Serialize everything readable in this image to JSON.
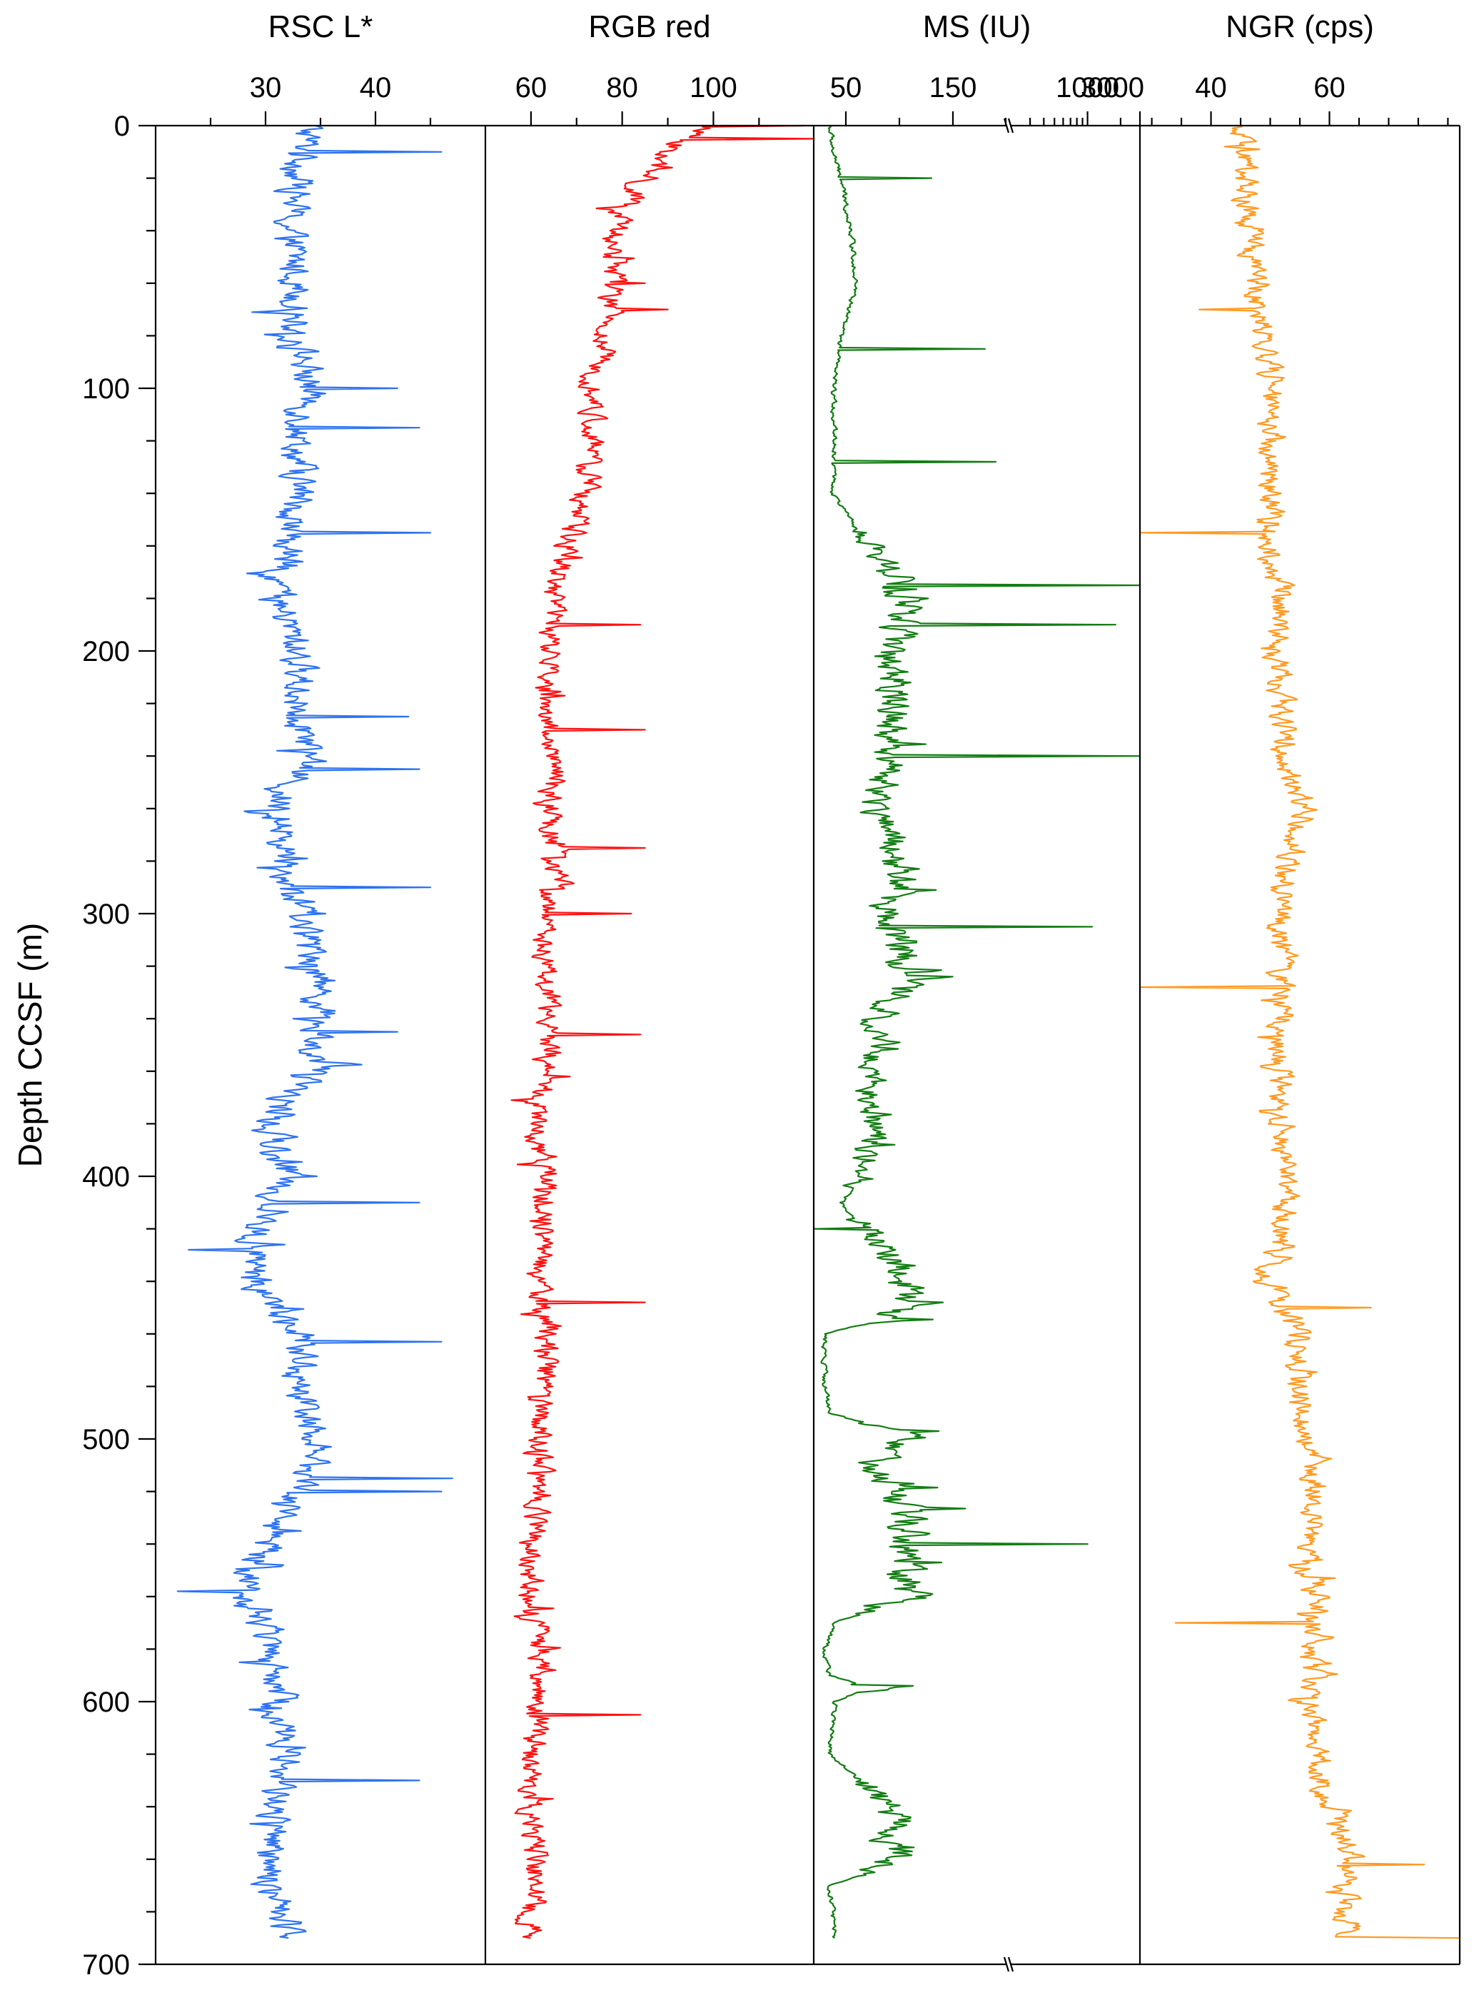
{
  "chart_data": {
    "type": "line",
    "orientation": "vertical-depth",
    "y_axis": {
      "label": "Depth CCSF (m)",
      "range": [
        0,
        700
      ],
      "inverted": true,
      "ticks": [
        0,
        100,
        200,
        300,
        400,
        500,
        600,
        700
      ],
      "minor_step": 20
    },
    "panels": [
      {
        "id": "rsc",
        "title": "RSC L*",
        "color": "#2e73f0",
        "xlim": [
          20,
          50
        ],
        "ticks": [
          30,
          40
        ],
        "minor_ticks": [
          25,
          35,
          45
        ],
        "baseline": [
          [
            0,
            34
          ],
          [
            20,
            33
          ],
          [
            40,
            32
          ],
          [
            60,
            33
          ],
          [
            80,
            33
          ],
          [
            100,
            34
          ],
          [
            120,
            33
          ],
          [
            140,
            33
          ],
          [
            160,
            32
          ],
          [
            180,
            31
          ],
          [
            200,
            33
          ],
          [
            220,
            33
          ],
          [
            240,
            34
          ],
          [
            260,
            31
          ],
          [
            280,
            32
          ],
          [
            300,
            33
          ],
          [
            320,
            35
          ],
          [
            340,
            35
          ],
          [
            360,
            34
          ],
          [
            380,
            30
          ],
          [
            400,
            32
          ],
          [
            420,
            29
          ],
          [
            440,
            29
          ],
          [
            460,
            33
          ],
          [
            480,
            33
          ],
          [
            500,
            35
          ],
          [
            520,
            33
          ],
          [
            540,
            30
          ],
          [
            560,
            28
          ],
          [
            580,
            31
          ],
          [
            600,
            31
          ],
          [
            620,
            32
          ],
          [
            640,
            31
          ],
          [
            660,
            30
          ],
          [
            680,
            31
          ],
          [
            690,
            33
          ]
        ],
        "amplitude": 2.6,
        "spikes": [
          [
            10,
            46
          ],
          [
            100,
            42
          ],
          [
            115,
            44
          ],
          [
            155,
            45
          ],
          [
            225,
            43
          ],
          [
            245,
            44
          ],
          [
            290,
            45
          ],
          [
            345,
            42
          ],
          [
            410,
            44
          ],
          [
            428,
            23
          ],
          [
            463,
            46
          ],
          [
            515,
            47
          ],
          [
            520,
            46
          ],
          [
            558,
            22
          ],
          [
            630,
            44
          ]
        ]
      },
      {
        "id": "rgb",
        "title": "RGB red",
        "color": "#ff1111",
        "xlim": [
          50,
          122
        ],
        "ticks": [
          60,
          80,
          100
        ],
        "minor_ticks": [
          70,
          90,
          110
        ],
        "baseline": [
          [
            0,
            98
          ],
          [
            10,
            90
          ],
          [
            20,
            84
          ],
          [
            40,
            78
          ],
          [
            60,
            78
          ],
          [
            80,
            76
          ],
          [
            100,
            74
          ],
          [
            120,
            73
          ],
          [
            140,
            72
          ],
          [
            160,
            68
          ],
          [
            180,
            65
          ],
          [
            200,
            64
          ],
          [
            220,
            63
          ],
          [
            240,
            65
          ],
          [
            260,
            64
          ],
          [
            280,
            66
          ],
          [
            300,
            63
          ],
          [
            320,
            63
          ],
          [
            340,
            64
          ],
          [
            360,
            63
          ],
          [
            380,
            61
          ],
          [
            400,
            64
          ],
          [
            420,
            63
          ],
          [
            440,
            61
          ],
          [
            460,
            64
          ],
          [
            480,
            62
          ],
          [
            500,
            62
          ],
          [
            520,
            62
          ],
          [
            540,
            60
          ],
          [
            560,
            60
          ],
          [
            580,
            62
          ],
          [
            600,
            62
          ],
          [
            620,
            60
          ],
          [
            640,
            60
          ],
          [
            660,
            61
          ],
          [
            680,
            60
          ],
          [
            690,
            60
          ]
        ],
        "amplitude": 4.5,
        "spikes": [
          [
            0,
            120
          ],
          [
            5,
            122
          ],
          [
            60,
            85
          ],
          [
            70,
            90
          ],
          [
            190,
            84
          ],
          [
            230,
            85
          ],
          [
            275,
            85
          ],
          [
            300,
            82
          ],
          [
            346,
            84
          ],
          [
            448,
            85
          ],
          [
            605,
            84
          ]
        ]
      },
      {
        "id": "ms",
        "title": "MS (IU)",
        "color": "#137d13",
        "tick_labels_left": [
          "50",
          "150"
        ],
        "tick_labels_right": [
          "1000",
          "3000"
        ],
        "xlim_linear": [
          20,
          200
        ],
        "xlim_log": [
          200,
          3000
        ],
        "ticks_linear": [
          50,
          150
        ],
        "minor_ticks_linear": [
          100,
          200
        ],
        "ticks_log": [
          1000,
          3000
        ],
        "baseline": [
          [
            0,
            35
          ],
          [
            10,
            38
          ],
          [
            20,
            45
          ],
          [
            40,
            55
          ],
          [
            60,
            60
          ],
          [
            80,
            45
          ],
          [
            100,
            38
          ],
          [
            120,
            40
          ],
          [
            140,
            38
          ],
          [
            160,
            70
          ],
          [
            180,
            110
          ],
          [
            200,
            90
          ],
          [
            220,
            100
          ],
          [
            240,
            90
          ],
          [
            260,
            80
          ],
          [
            280,
            100
          ],
          [
            300,
            90
          ],
          [
            320,
            110
          ],
          [
            340,
            80
          ],
          [
            360,
            75
          ],
          [
            380,
            75
          ],
          [
            400,
            70
          ],
          [
            410,
            45
          ],
          [
            420,
            70
          ],
          [
            440,
            110
          ],
          [
            455,
            80
          ],
          [
            460,
            30
          ],
          [
            480,
            30
          ],
          [
            490,
            35
          ],
          [
            500,
            110
          ],
          [
            510,
            70
          ],
          [
            530,
            110
          ],
          [
            545,
            100
          ],
          [
            560,
            110
          ],
          [
            570,
            40
          ],
          [
            580,
            30
          ],
          [
            590,
            35
          ],
          [
            595,
            75
          ],
          [
            600,
            40
          ],
          [
            620,
            35
          ],
          [
            640,
            90
          ],
          [
            660,
            100
          ],
          [
            670,
            35
          ],
          [
            690,
            40
          ]
        ],
        "amplitude": 25,
        "spikes": [
          [
            20,
            130
          ],
          [
            85,
            180
          ],
          [
            128,
            190
          ],
          [
            175,
            3000
          ],
          [
            190,
            1800
          ],
          [
            240,
            3000
          ],
          [
            305,
            1100
          ],
          [
            420,
            15
          ],
          [
            540,
            1000
          ]
        ]
      },
      {
        "id": "ngr",
        "title": "NGR (cps)",
        "color": "#ff9a22",
        "xlim": [
          28,
          82
        ],
        "ticks": [
          40,
          60
        ],
        "minor_ticks": [
          30,
          35,
          45,
          50,
          55,
          65,
          70,
          75,
          80
        ],
        "baseline": [
          [
            0,
            44
          ],
          [
            20,
            46
          ],
          [
            40,
            46
          ],
          [
            60,
            48
          ],
          [
            80,
            49
          ],
          [
            100,
            50
          ],
          [
            120,
            50
          ],
          [
            140,
            50
          ],
          [
            160,
            50
          ],
          [
            180,
            52
          ],
          [
            200,
            51
          ],
          [
            220,
            52
          ],
          [
            240,
            52
          ],
          [
            260,
            56
          ],
          [
            280,
            53
          ],
          [
            300,
            52
          ],
          [
            320,
            52
          ],
          [
            340,
            52
          ],
          [
            360,
            51
          ],
          [
            380,
            52
          ],
          [
            400,
            53
          ],
          [
            420,
            52
          ],
          [
            440,
            49
          ],
          [
            460,
            55
          ],
          [
            480,
            54
          ],
          [
            500,
            56
          ],
          [
            520,
            58
          ],
          [
            540,
            56
          ],
          [
            560,
            58
          ],
          [
            580,
            57
          ],
          [
            600,
            56
          ],
          [
            620,
            58
          ],
          [
            640,
            60
          ],
          [
            660,
            64
          ],
          [
            680,
            62
          ],
          [
            690,
            64
          ]
        ],
        "amplitude": 3.5,
        "spikes": [
          [
            70,
            38
          ],
          [
            155,
            28
          ],
          [
            328,
            28
          ],
          [
            450,
            67
          ],
          [
            570,
            34
          ],
          [
            662,
            76
          ],
          [
            690,
            82
          ]
        ]
      }
    ]
  }
}
